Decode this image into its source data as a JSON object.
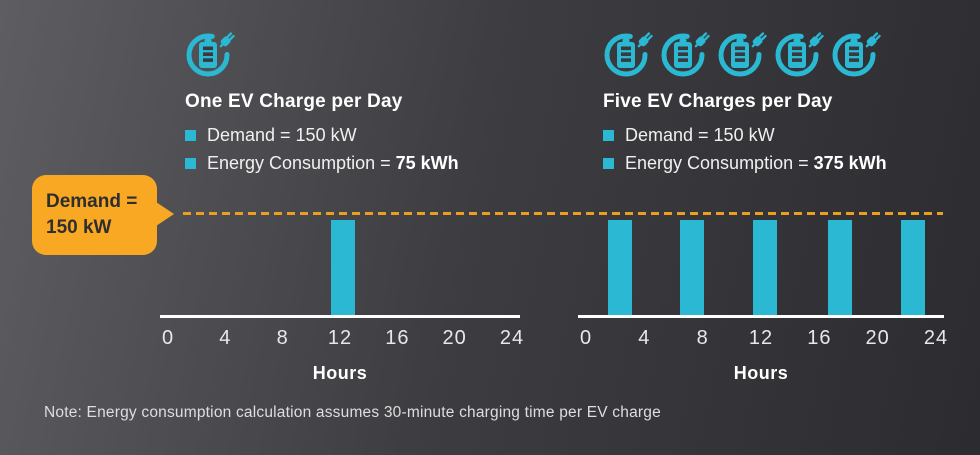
{
  "colors": {
    "cyan": "#2AB8D3",
    "orange": "#F8A823",
    "dash": "#E8A01E",
    "slot": "#3A3A3E",
    "bg-left": "#5E5E62",
    "bg-mid": "#3D3D41",
    "bg-right": "#2C2C30",
    "text-light": "#FFFFFF",
    "tick": "#E8E8E8",
    "callout-text": "#2E2E30"
  },
  "callout": {
    "line1": "Demand =",
    "line2": "150 kW"
  },
  "panels": [
    {
      "title": "One EV Charge per Day",
      "icon_count": 1,
      "icon_name": "ev-battery-charge-icon",
      "bullets": [
        {
          "text": "Demand = 150 kW",
          "bold": ""
        },
        {
          "text": "Energy Consumption = ",
          "bold": "75 kWh"
        }
      ]
    },
    {
      "title": "Five EV Charges per Day",
      "icon_count": 5,
      "icon_name": "ev-battery-charge-icon",
      "bullets": [
        {
          "text": "Demand = 150 kW",
          "bold": ""
        },
        {
          "text": "Energy Consumption = ",
          "bold": "375 kWh"
        }
      ]
    }
  ],
  "chart_data": [
    {
      "type": "bar",
      "title": "One EV Charge per Day",
      "x": [
        12.2
      ],
      "values_kW": [
        150
      ],
      "bar_width_hours": 1.7,
      "xlabel": "Hours",
      "xticks": [
        0,
        4,
        8,
        12,
        16,
        20,
        24
      ],
      "xlim": [
        0,
        24
      ],
      "demand_line_kW": 150,
      "grid": false,
      "annotation": "Demand = 150 kW (dashed threshold line)"
    },
    {
      "type": "bar",
      "title": "Five EV Charges per Day",
      "x": [
        2.3,
        7.3,
        12.3,
        17.4,
        22.4
      ],
      "values_kW": [
        150,
        150,
        150,
        150,
        150
      ],
      "bar_width_hours": 1.7,
      "xlabel": "Hours",
      "xticks": [
        0,
        4,
        8,
        12,
        16,
        20,
        24
      ],
      "xlim": [
        0,
        24
      ],
      "demand_line_kW": 150,
      "grid": false,
      "annotation": "Demand = 150 kW (dashed threshold line)"
    }
  ],
  "note": "Note: Energy consumption calculation assumes 30-minute charging time per EV charge"
}
